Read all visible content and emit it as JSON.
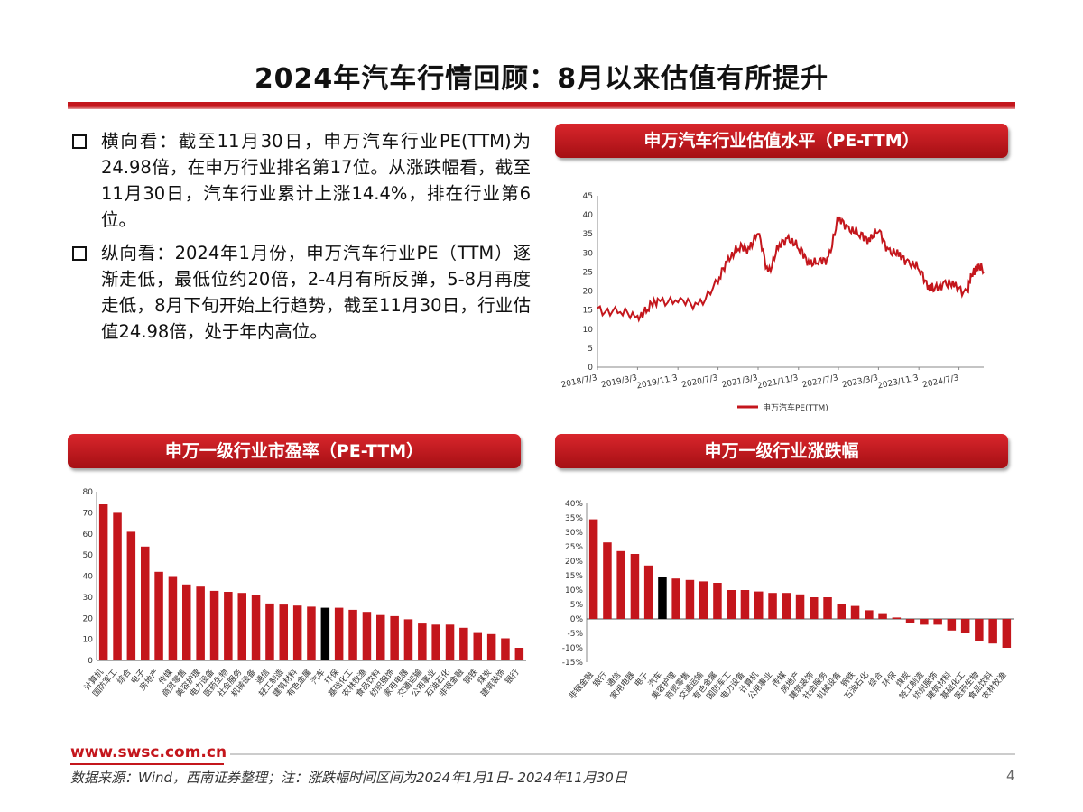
{
  "page": {
    "title": "2024年汽车行情回顾：8月以来估值有所提升",
    "bullets": [
      "横向看：截至11月30日，申万汽车行业PE(TTM)为24.98倍，在申万行业排名第17位。从涨跌幅看，截至11月30日，汽车行业累计上涨14.4%，排在行业第6位。",
      "纵向看：2024年1月份，申万汽车行业PE（TTM）逐渐走低，最低位约20倍，2-4月有所反弹，5-8月再度走低，8月下旬开始上行趋势，截至11月30日，行业估值24.98倍，处于年内高位。"
    ],
    "panels": {
      "pe_line": "申万汽车行业估值水平（PE-TTM）",
      "pe_bar": "申万一级行业市盈率（PE-TTM）",
      "ret_bar": "申万一级行业涨跌幅"
    },
    "footer": {
      "url": "www.swsc.com.cn",
      "note": "数据来源：Wind，西南证券整理；注：涨跌幅时间区间为2024年1月1日- 2024年11月30日",
      "page_number": "4"
    },
    "colors": {
      "accent": "#c4161c",
      "highlight": "#000000"
    }
  },
  "chart_data": [
    {
      "type": "line",
      "title": "申万汽车行业估值水平（PE-TTM）",
      "x_ticks": [
        "2018/7/3",
        "2019/3/3",
        "2019/11/3",
        "2020/7/3",
        "2021/3/3",
        "2021/11/3",
        "2022/7/3",
        "2023/3/3",
        "2023/11/3",
        "2024/7/3"
      ],
      "ylim": [
        0,
        45
      ],
      "y_ticks": [
        0,
        5,
        10,
        15,
        20,
        25,
        30,
        35,
        40,
        45
      ],
      "series": [
        {
          "name": "申万汽车PE(TTM)",
          "x": [
            "2018/7/3",
            "2018/11/3",
            "2019/3/3",
            "2019/5/3",
            "2019/7/3",
            "2019/11/3",
            "2020/3/3",
            "2020/7/3",
            "2020/9/3",
            "2020/11/3",
            "2021/1/3",
            "2021/3/3",
            "2021/5/3",
            "2021/7/3",
            "2021/9/3",
            "2021/11/3",
            "2022/1/3",
            "2022/3/3",
            "2022/5/3",
            "2022/7/3",
            "2022/9/3",
            "2022/11/3",
            "2023/1/3",
            "2023/3/3",
            "2023/5/3",
            "2023/7/3",
            "2023/9/3",
            "2023/11/3",
            "2024/1/3",
            "2024/2/3",
            "2024/4/3",
            "2024/6/3",
            "2024/8/20",
            "2024/9/20",
            "2024/10/20",
            "2024/11/30"
          ],
          "values": [
            15.5,
            14.2,
            13.5,
            15.0,
            18.0,
            17.0,
            16.5,
            22.0,
            29.0,
            31.0,
            31.5,
            35.0,
            25.0,
            31.0,
            34.5,
            31.0,
            28.0,
            27.0,
            29.0,
            38.5,
            37.0,
            34.5,
            34.0,
            35.5,
            31.0,
            29.0,
            28.0,
            25.5,
            21.5,
            20.0,
            22.5,
            21.0,
            20.0,
            24.0,
            27.0,
            24.98
          ]
        }
      ]
    },
    {
      "type": "bar",
      "title": "申万一级行业市盈率（PE-TTM）",
      "ylim": [
        0,
        80
      ],
      "y_ticks": [
        0,
        10,
        20,
        30,
        40,
        50,
        60,
        70,
        80
      ],
      "categories": [
        "计算机",
        "国防军工",
        "综合",
        "电子",
        "房地产",
        "传媒",
        "商贸零售",
        "美容护理",
        "电力设备",
        "医药生物",
        "社会服务",
        "机械设备",
        "通信",
        "轻工制造",
        "建筑材料",
        "有色金属",
        "汽车",
        "环保",
        "基础化工",
        "农林牧渔",
        "食品饮料",
        "纺织服饰",
        "家用电器",
        "交通运输",
        "公用事业",
        "石油石化",
        "非银金融",
        "钢铁",
        "煤炭",
        "建筑装饰",
        "银行"
      ],
      "values": [
        74,
        70,
        61,
        54,
        42,
        40,
        36,
        35,
        33,
        32.5,
        32,
        31,
        27,
        26.5,
        26,
        25.5,
        24.98,
        25,
        24,
        23,
        21.5,
        21,
        19.5,
        17.5,
        17,
        17,
        15.5,
        13,
        12.5,
        10.5,
        6
      ],
      "highlight": "汽车"
    },
    {
      "type": "bar",
      "title": "申万一级行业涨跌幅",
      "ylim": [
        -15,
        40
      ],
      "y_ticks": [
        "-15%",
        "-10%",
        "-5%",
        "0%",
        "5%",
        "10%",
        "15%",
        "20%",
        "25%",
        "30%",
        "35%",
        "40%"
      ],
      "categories": [
        "非银金融",
        "银行",
        "通信",
        "家用电器",
        "电子",
        "汽车",
        "美容护理",
        "商贸零售",
        "交通运输",
        "有色金属",
        "国防军工",
        "电力设备",
        "计算机",
        "公用事业",
        "传媒",
        "房地产",
        "建筑装饰",
        "社会服务",
        "机械设备",
        "钢铁",
        "石油石化",
        "综合",
        "环保",
        "煤炭",
        "轻工制造",
        "纺织服饰",
        "建筑材料",
        "基础化工",
        "医药生物",
        "食品饮料",
        "农林牧渔"
      ],
      "values": [
        34.5,
        26.5,
        23.5,
        22.5,
        18.5,
        14.4,
        14.0,
        13.5,
        13.0,
        12.5,
        10.0,
        10.0,
        9.5,
        9.0,
        9.0,
        8.5,
        7.5,
        7.5,
        5.0,
        4.5,
        3.0,
        2.0,
        0.5,
        -1.5,
        -2.0,
        -2.0,
        -4.0,
        -5.0,
        -7.5,
        -8.5,
        -10.0
      ],
      "highlight": "汽车"
    }
  ]
}
